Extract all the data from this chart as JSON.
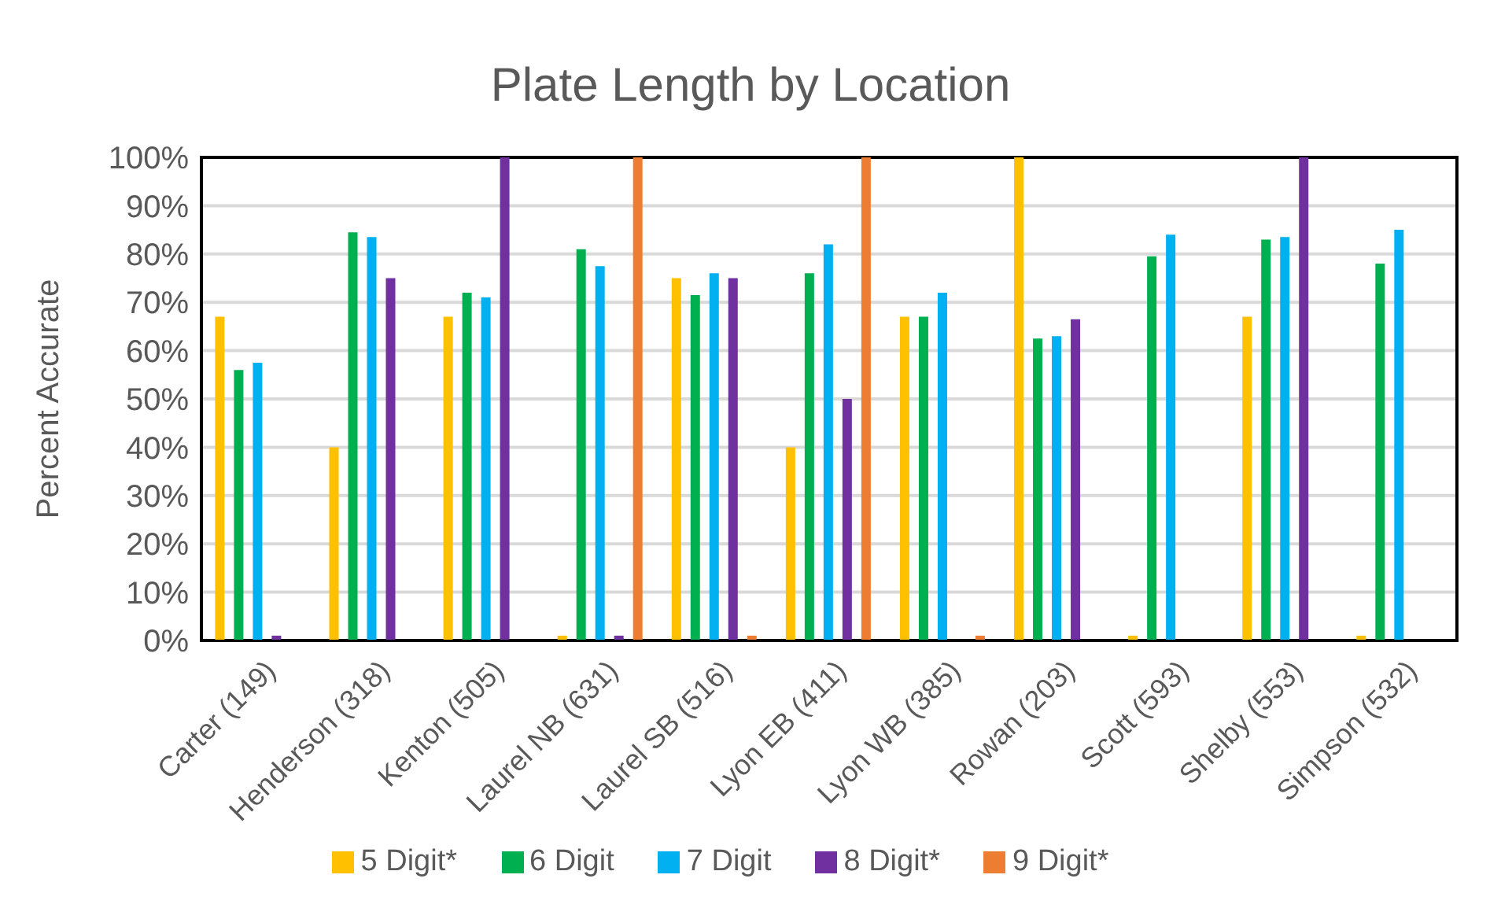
{
  "chart_data": {
    "type": "bar",
    "title": "Plate Length by Location",
    "ylabel": "Percent Accurate",
    "categories": [
      "Carter (149)",
      "Henderson (318)",
      "Kenton (505)",
      "Laurel NB (631)",
      "Laurel SB (516)",
      "Lyon EB (411)",
      "Lyon WB (385)",
      "Rowan (203)",
      "Scott (593)",
      "Shelby (553)",
      "Simpson (532)"
    ],
    "series": [
      {
        "name": "5 Digit*",
        "color": "#ffc000",
        "values": [
          67,
          40,
          67,
          1,
          75,
          40,
          67,
          100,
          1,
          67,
          1
        ]
      },
      {
        "name": "6 Digit",
        "color": "#00b050",
        "values": [
          56,
          84.5,
          72,
          81,
          71.5,
          76,
          67,
          62.5,
          79.5,
          83,
          78
        ]
      },
      {
        "name": "7 Digit",
        "color": "#00b0f0",
        "values": [
          57.5,
          83.5,
          71,
          77.5,
          76,
          82,
          72,
          63,
          84,
          83.5,
          85
        ]
      },
      {
        "name": "8 Digit*",
        "color": "#7030a0",
        "values": [
          1,
          75,
          100,
          1,
          75,
          50,
          null,
          66.5,
          null,
          100,
          null
        ]
      },
      {
        "name": "9 Digit*",
        "color": "#ed7d31",
        "values": [
          null,
          null,
          null,
          100,
          1,
          100,
          1,
          null,
          null,
          null,
          null
        ]
      }
    ],
    "ylim": [
      0,
      100
    ],
    "yticks": [
      {
        "value": 0,
        "label": "0%"
      },
      {
        "value": 10,
        "label": "10%"
      },
      {
        "value": 20,
        "label": "20%"
      },
      {
        "value": 30,
        "label": "30%"
      },
      {
        "value": 40,
        "label": "40%"
      },
      {
        "value": 50,
        "label": "50%"
      },
      {
        "value": 60,
        "label": "60%"
      },
      {
        "value": 70,
        "label": "70%"
      },
      {
        "value": 80,
        "label": "80%"
      },
      {
        "value": 90,
        "label": "90%"
      },
      {
        "value": 100,
        "label": "100%"
      }
    ],
    "grid": "y",
    "legend": "bottom"
  }
}
